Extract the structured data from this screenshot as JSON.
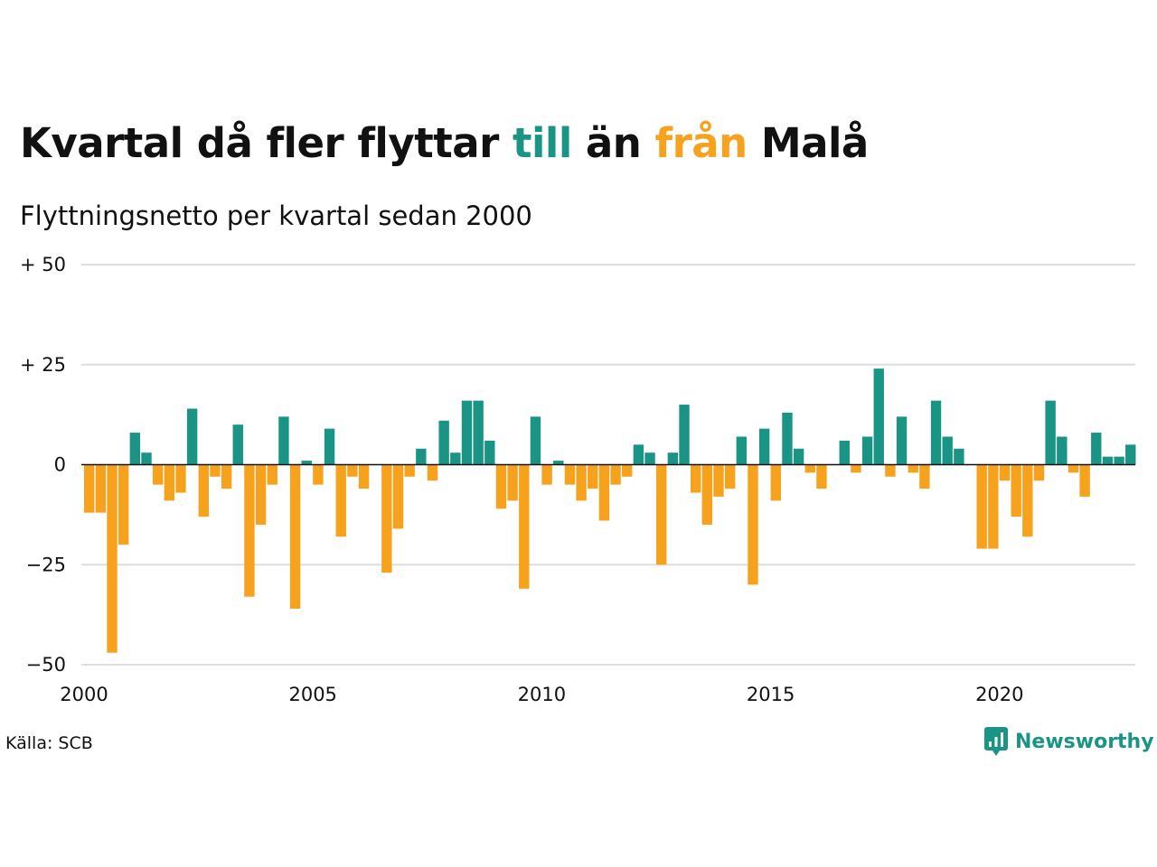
{
  "title": {
    "part1": "Kvartal då fler flyttar ",
    "till": "till",
    "part2": " än ",
    "fran": "från",
    "part3": " Malå"
  },
  "subtitle": "Flyttningsnetto per kvartal sedan 2000",
  "source": "Källa: SCB",
  "brand": "Newsworthy",
  "colors": {
    "positive": "#1a9585",
    "negative": "#f7a21d",
    "grid": "#dddddd",
    "text": "#111111"
  },
  "chart_data": {
    "type": "bar",
    "x_start": "2000 Q1",
    "x_step": "quarter",
    "ylim": [
      -50,
      50
    ],
    "yticks": [
      50,
      25,
      0,
      -25,
      -50
    ],
    "ytick_labels": [
      "+ 50",
      "+ 25",
      "0",
      "−25",
      "−50"
    ],
    "xticks": [
      2000,
      2005,
      2010,
      2015,
      2020
    ],
    "xtick_labels": [
      "2000",
      "2005",
      "2010",
      "2015",
      "2020"
    ],
    "grid": true,
    "values": [
      -12,
      -12,
      -47,
      -20,
      8,
      3,
      -5,
      -9,
      -7,
      14,
      -13,
      -3,
      -6,
      10,
      -33,
      -15,
      -5,
      12,
      -36,
      1,
      -5,
      9,
      -18,
      -3,
      -6,
      0,
      -27,
      -16,
      -3,
      4,
      -4,
      11,
      3,
      16,
      16,
      6,
      -11,
      -9,
      -31,
      12,
      -5,
      1,
      -5,
      -9,
      -6,
      -14,
      -5,
      -3,
      5,
      3,
      -25,
      3,
      15,
      -7,
      -15,
      -8,
      -6,
      7,
      -30,
      9,
      -9,
      13,
      4,
      -2,
      -6,
      0,
      6,
      -2,
      7,
      24,
      -3,
      12,
      -2,
      -6,
      16,
      7,
      4,
      0,
      -21,
      -21,
      -4,
      -13,
      -18,
      -4,
      16,
      7,
      -2,
      -8,
      8,
      2,
      2,
      5
    ]
  }
}
